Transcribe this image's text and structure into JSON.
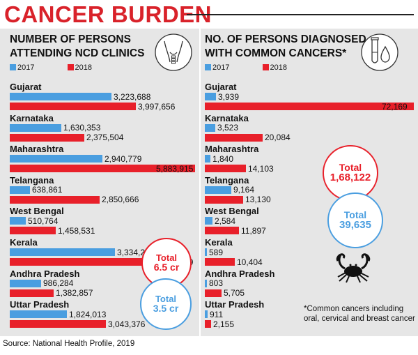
{
  "header": {
    "title": "CANCER BURDEN"
  },
  "colors": {
    "y2017": "#4a9ee0",
    "y2018": "#e8202a",
    "accent": "#d9222a",
    "panel_bg": "#e6e6e6"
  },
  "legend": {
    "y2017": "2017",
    "y2018": "2018"
  },
  "chart_data": [
    {
      "type": "bar",
      "title": "NUMBER OF PERSONS ATTENDING NCD CLINICS",
      "title_lines": [
        "NUMBER OF PERSONS",
        "ATTENDING NCD CLINICS"
      ],
      "categories": [
        "Gujarat",
        "Karnataka",
        "Maharashtra",
        "Telangana",
        "West Bengal",
        "Kerala",
        "Andhra Pradesh",
        "Uttar Pradesh"
      ],
      "series": [
        {
          "name": "2017",
          "values": [
            3223688,
            1630353,
            2940779,
            638861,
            510764,
            3334252,
            986284,
            1824013
          ],
          "labels": [
            "3,223,688",
            "1,630,353",
            "2,940,779",
            "638,861",
            "510,764",
            "3,334,252",
            "986,284",
            "1,824,013"
          ]
        },
        {
          "name": "2018",
          "values": [
            3997656,
            2375504,
            5883915,
            2850666,
            1458531,
            4758159,
            1382857,
            3043376
          ],
          "labels": [
            "3,997,656",
            "2,375,504",
            "5,883,915",
            "2,850,666",
            "1,458,531",
            "4,758,159",
            "1,382,857",
            "3,043,376"
          ]
        }
      ],
      "totals": [
        {
          "label": "Total",
          "value": "6.5 cr"
        },
        {
          "label": "Total",
          "value": "3.5 cr"
        }
      ]
    },
    {
      "type": "bar",
      "title": "NO. OF PERSONS DIAGNOSED WITH COMMON CANCERS*",
      "title_lines": [
        "NO. OF PERSONS DIAGNOSED",
        "WITH COMMON CANCERS*"
      ],
      "categories": [
        "Gujarat",
        "Karnataka",
        "Maharashtra",
        "Telangana",
        "West Bengal",
        "Kerala",
        "Andhra Pradesh",
        "Uttar Pradesh"
      ],
      "series": [
        {
          "name": "2017",
          "values": [
            3939,
            3523,
            1840,
            9164,
            2584,
            589,
            803,
            911
          ],
          "labels": [
            "3,939",
            "3,523",
            "1,840",
            "9,164",
            "2,584",
            "589",
            "803",
            "911"
          ]
        },
        {
          "name": "2018",
          "values": [
            72169,
            20084,
            14103,
            13130,
            11897,
            10404,
            5705,
            2155
          ],
          "labels": [
            "72,169",
            "20,084",
            "14,103",
            "13,130",
            "11,897",
            "10,404",
            "5,705",
            "2,155"
          ]
        }
      ],
      "totals": [
        {
          "label": "Total",
          "value": "1,68,122"
        },
        {
          "label": "Total",
          "value": "39,635"
        }
      ]
    }
  ],
  "footnote": "*Common cancers including oral, cervical and breast cancer",
  "source": "Source: National Health Profile, 2019",
  "icons": [
    "throat-icon",
    "test-tube-icon",
    "crab-icon"
  ]
}
